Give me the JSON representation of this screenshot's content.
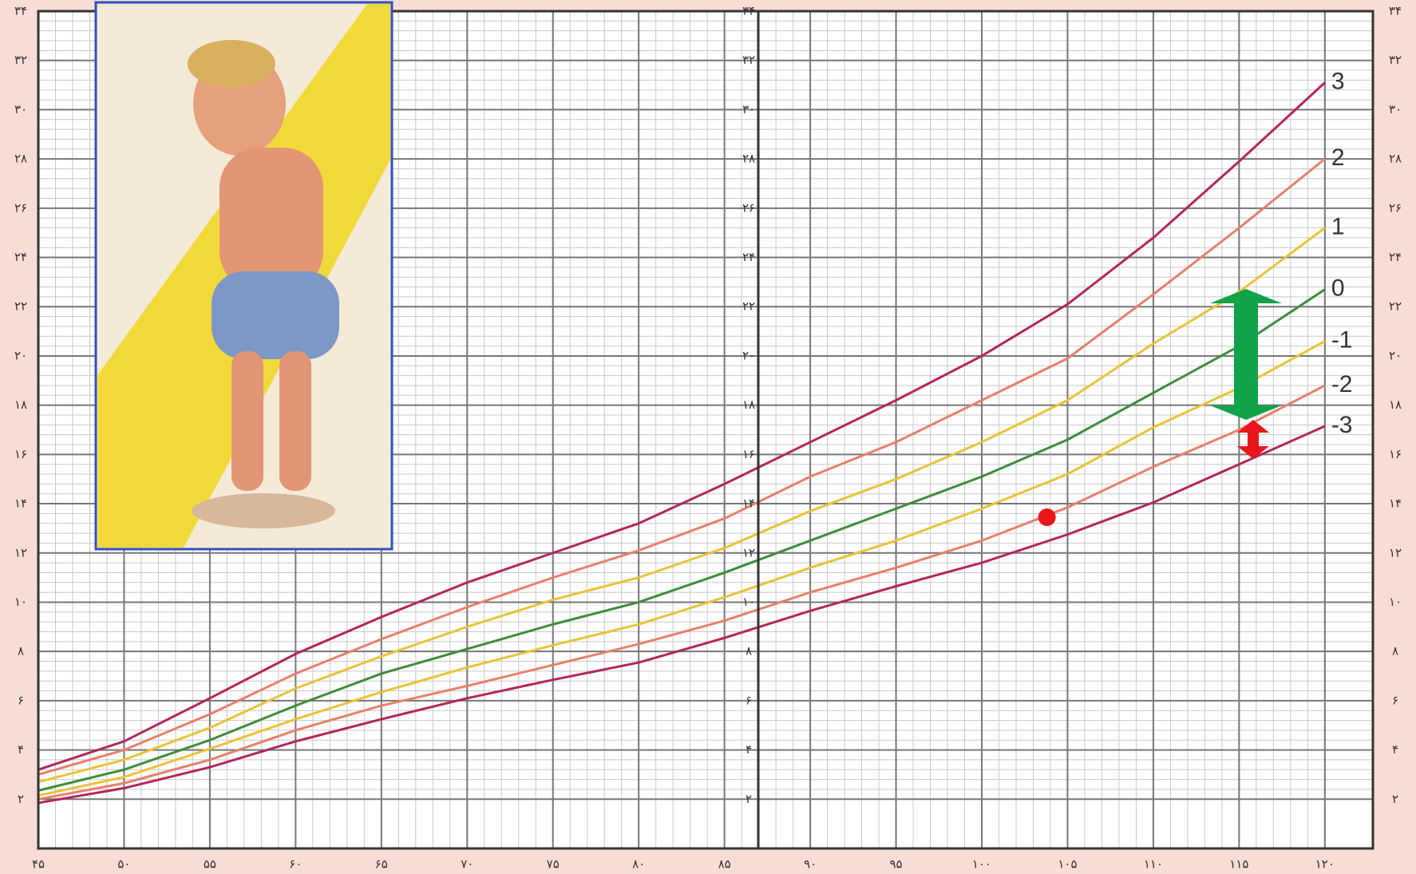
{
  "chart_data": {
    "type": "line",
    "x": [
      45,
      50,
      55,
      60,
      65,
      70,
      75,
      80,
      85,
      90,
      95,
      100,
      105,
      110,
      115,
      120
    ],
    "series": [
      {
        "name": "3",
        "color": "#b3265c",
        "values": [
          3.2,
          4.35,
          6.1,
          7.9,
          9.4,
          10.8,
          12.0,
          13.2,
          14.8,
          16.5,
          18.2,
          20.0,
          22.1,
          24.8,
          27.9,
          31.1
        ]
      },
      {
        "name": "2",
        "color": "#e77f6c",
        "values": [
          3.0,
          4.0,
          5.45,
          7.1,
          8.5,
          9.8,
          11.0,
          12.1,
          13.4,
          15.1,
          16.5,
          18.2,
          19.9,
          22.5,
          25.2,
          28.0
        ]
      },
      {
        "name": "1",
        "color": "#e9c336",
        "values": [
          2.7,
          3.6,
          4.9,
          6.5,
          7.8,
          9.0,
          10.1,
          11.0,
          12.2,
          13.7,
          15.0,
          16.5,
          18.2,
          20.5,
          22.6,
          25.2
        ]
      },
      {
        "name": "0",
        "color": "#3f8c3c",
        "values": [
          2.35,
          3.2,
          4.4,
          5.8,
          7.1,
          8.1,
          9.1,
          10.0,
          11.2,
          12.5,
          13.8,
          15.1,
          16.6,
          18.5,
          20.4,
          22.7
        ]
      },
      {
        "name": "-1",
        "color": "#e9c336",
        "values": [
          2.15,
          2.9,
          4.05,
          5.25,
          6.35,
          7.35,
          8.25,
          9.1,
          10.2,
          11.4,
          12.5,
          13.8,
          15.2,
          17.1,
          18.7,
          20.6
        ]
      },
      {
        "name": "-2",
        "color": "#e77f6c",
        "values": [
          2.0,
          2.65,
          3.6,
          4.8,
          5.8,
          6.6,
          7.45,
          8.3,
          9.25,
          10.4,
          11.4,
          12.5,
          13.85,
          15.5,
          17.0,
          18.8
        ]
      },
      {
        "name": "-3",
        "color": "#b3265c",
        "values": [
          1.85,
          2.45,
          3.3,
          4.35,
          5.25,
          6.1,
          6.85,
          7.55,
          8.55,
          9.65,
          10.65,
          11.6,
          12.75,
          14.05,
          15.6,
          17.15
        ]
      }
    ],
    "point": {
      "x": 103.8,
      "y": 13.45,
      "color": "#e8161b"
    },
    "xlim": [
      45,
      122.8
    ],
    "ylim": [
      0,
      34
    ],
    "xticks": [
      {
        "value": 45,
        "label": "۴۵"
      },
      {
        "value": 50,
        "label": "۵۰"
      },
      {
        "value": 55,
        "label": "۵۵"
      },
      {
        "value": 60,
        "label": "۶۰"
      },
      {
        "value": 65,
        "label": "۶۵"
      },
      {
        "value": 70,
        "label": "۷۰"
      },
      {
        "value": 75,
        "label": "۷۵"
      },
      {
        "value": 80,
        "label": "۸۰"
      },
      {
        "value": 85,
        "label": "۸۵"
      },
      {
        "value": 90,
        "label": "۹۰"
      },
      {
        "value": 95,
        "label": "۹۵"
      },
      {
        "value": 100,
        "label": "۱۰۰"
      },
      {
        "value": 105,
        "label": "۱۰۵"
      },
      {
        "value": 110,
        "label": "۱۱۰"
      },
      {
        "value": 115,
        "label": "۱۱۵"
      },
      {
        "value": 120,
        "label": "۱۲۰"
      }
    ],
    "yticks": [
      {
        "value": 2,
        "label": "۲"
      },
      {
        "value": 4,
        "label": "۴"
      },
      {
        "value": 6,
        "label": "۶"
      },
      {
        "value": 8,
        "label": "۸"
      },
      {
        "value": 10,
        "label": "۱۰"
      },
      {
        "value": 12,
        "label": "۱۲"
      },
      {
        "value": 14,
        "label": "۱۴"
      },
      {
        "value": 16,
        "label": "۱۶"
      },
      {
        "value": 18,
        "label": "۱۸"
      },
      {
        "value": 20,
        "label": "۲۰"
      },
      {
        "value": 22,
        "label": "۲۲"
      },
      {
        "value": 24,
        "label": "۲۴"
      },
      {
        "value": 26,
        "label": "۲۶"
      },
      {
        "value": 28,
        "label": "۲۸"
      },
      {
        "value": 30,
        "label": "۳۰"
      },
      {
        "value": 32,
        "label": "۳۲"
      },
      {
        "value": 34,
        "label": "۳۴"
      }
    ],
    "grid": true
  }
}
